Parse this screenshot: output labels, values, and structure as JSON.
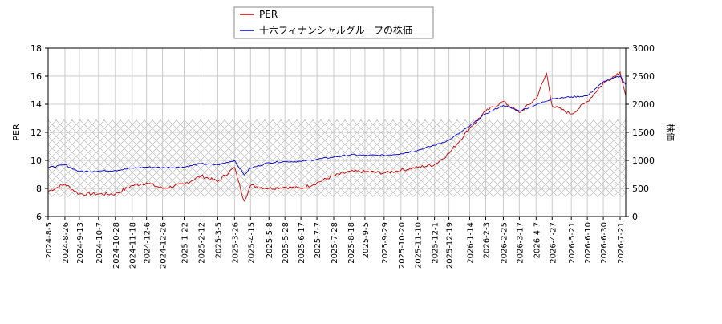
{
  "chart_data": {
    "type": "line",
    "legend": {
      "placement": "top-center",
      "items": [
        {
          "name": "PER",
          "color": "#cc0000"
        },
        {
          "name": "十六フィナンシャルグループの株価",
          "color": "#0000cc"
        }
      ]
    },
    "ylabel_left": "PER",
    "ylabel_right": "株価",
    "ylim_left": [
      6,
      18
    ],
    "ylim_right": [
      0,
      3000
    ],
    "yticks_left": [
      "6",
      "8",
      "10",
      "12",
      "14",
      "16",
      "18"
    ],
    "yticks_right": [
      "0",
      "500",
      "1000",
      "1500",
      "2000",
      "2500",
      "3000"
    ],
    "grid": true,
    "shaded_band": {
      "pattern": "crosshatch",
      "range_left": [
        7.4,
        12.9
      ]
    },
    "x_ticks": [
      "2024-8-5",
      "2024-8-26",
      "2024-9-13",
      "2024-10-7",
      "2024-10-28",
      "2024-11-18",
      "2024-12-6",
      "2024-12-26",
      "2025-1-22",
      "2025-2-12",
      "2025-3-5",
      "2025-3-26",
      "2025-4-15",
      "2025-5-8",
      "2025-5-28",
      "2025-6-17",
      "2025-7-7",
      "2025-7-28",
      "2025-8-18",
      "2025-9-5",
      "2025-9-29",
      "2025-10-20",
      "2025-11-10",
      "2025-12-1",
      "2025-12-19",
      "2026-1-14",
      "2026-2-3",
      "2026-2-25",
      "2026-3-17",
      "2026-4-7",
      "2026-4-27",
      "2026-5-21",
      "2026-6-10",
      "2026-6-30",
      "2026-7-21"
    ],
    "series": [
      {
        "name": "PER",
        "color": "#cc0000",
        "axis": "left",
        "x": [
          "2024-8-5",
          "2024-8-26",
          "2024-9-13",
          "2024-10-7",
          "2024-10-28",
          "2024-11-18",
          "2024-12-6",
          "2024-12-26",
          "2025-1-22",
          "2025-2-12",
          "2025-3-5",
          "2025-3-26",
          "2025-4-7",
          "2025-4-15",
          "2025-5-8",
          "2025-5-28",
          "2025-6-17",
          "2025-7-7",
          "2025-7-28",
          "2025-8-18",
          "2025-9-5",
          "2025-9-29",
          "2025-10-20",
          "2025-11-10",
          "2025-12-1",
          "2025-12-19",
          "2026-1-14",
          "2026-2-3",
          "2026-2-25",
          "2026-3-17",
          "2026-4-7",
          "2026-4-20",
          "2026-4-27",
          "2026-5-21",
          "2026-6-10",
          "2026-6-30",
          "2026-7-21",
          "2026-7-28"
        ],
        "values": [
          7.8,
          8.3,
          7.6,
          7.6,
          7.6,
          8.2,
          8.4,
          8.0,
          8.3,
          8.9,
          8.5,
          9.5,
          7.1,
          8.2,
          8.0,
          8.1,
          8.0,
          8.4,
          8.9,
          9.2,
          9.2,
          9.1,
          9.3,
          9.5,
          9.7,
          10.5,
          12.3,
          13.5,
          14.2,
          13.4,
          14.4,
          16.2,
          13.9,
          13.3,
          14.2,
          15.5,
          16.3,
          14.6
        ]
      },
      {
        "name": "十六フィナンシャルグループの株価",
        "color": "#0000cc",
        "axis": "right",
        "x": [
          "2024-8-5",
          "2024-8-26",
          "2024-9-13",
          "2024-10-7",
          "2024-10-28",
          "2024-11-18",
          "2024-12-6",
          "2024-12-26",
          "2025-1-22",
          "2025-2-12",
          "2025-3-5",
          "2025-3-26",
          "2025-4-7",
          "2025-4-15",
          "2025-5-8",
          "2025-5-28",
          "2025-6-17",
          "2025-7-7",
          "2025-7-28",
          "2025-8-18",
          "2025-9-5",
          "2025-9-29",
          "2025-10-20",
          "2025-11-10",
          "2025-12-1",
          "2025-12-19",
          "2026-1-14",
          "2026-2-3",
          "2026-2-25",
          "2026-3-17",
          "2026-4-7",
          "2026-4-27",
          "2026-5-21",
          "2026-6-10",
          "2026-6-30",
          "2026-7-21",
          "2026-7-28"
        ],
        "values": [
          870,
          920,
          800,
          810,
          820,
          860,
          880,
          870,
          880,
          940,
          920,
          1000,
          740,
          860,
          960,
          980,
          980,
          1020,
          1060,
          1100,
          1090,
          1090,
          1120,
          1180,
          1270,
          1360,
          1610,
          1830,
          1980,
          1880,
          1990,
          2100,
          2130,
          2150,
          2400,
          2500,
          2350
        ]
      }
    ]
  }
}
